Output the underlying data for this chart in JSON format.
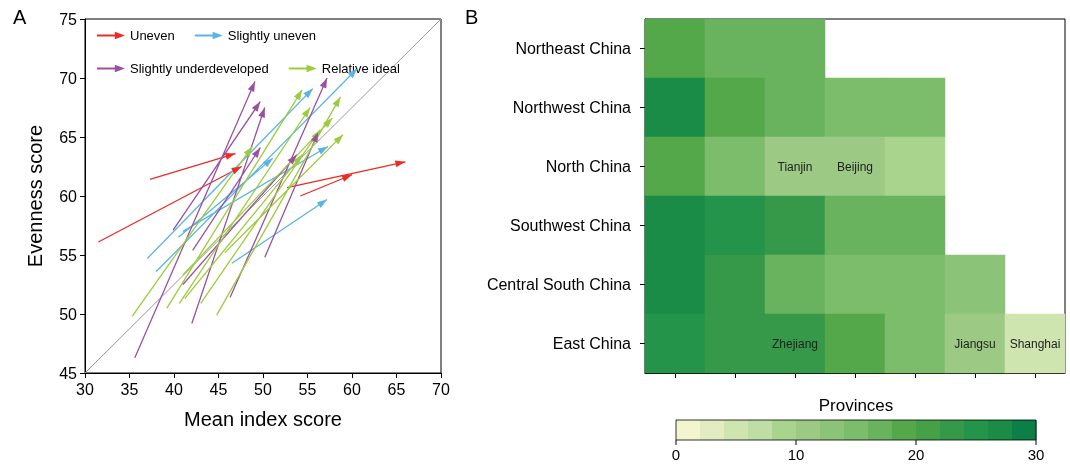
{
  "chart_data": [
    {
      "type": "line",
      "title": "A",
      "xlabel": "Mean index score",
      "ylabel": "Evenness score",
      "xlim": [
        30,
        70
      ],
      "ylim": [
        45,
        75
      ],
      "xticks": [
        30,
        35,
        40,
        45,
        50,
        55,
        60,
        65,
        70
      ],
      "yticks": [
        45,
        50,
        55,
        60,
        65,
        70,
        75
      ],
      "legend": "top",
      "grid": false,
      "series": [
        {
          "name": "Uneven",
          "color": "#ee2a24",
          "x": [
            37.3,
            46.9,
            null,
            31.5,
            47.6,
            null,
            52.7,
            66,
            null,
            54.2,
            60
          ],
          "values": [
            61.4,
            63.6,
            null,
            56.1,
            62.5,
            null,
            60.7,
            62.9,
            null,
            60,
            61.8
          ]
        },
        {
          "name": "Slightly uneven",
          "color": "#5ab4e5",
          "x": [
            37,
            55.6,
            null,
            38,
            60.6,
            null,
            41,
            57.3,
            null,
            40.5,
            51.1,
            null,
            46.5,
            57.2
          ],
          "values": [
            54.7,
            69.1,
            null,
            53.6,
            70.8,
            null,
            57,
            64.2,
            null,
            56.5,
            63.2,
            null,
            54.3,
            59.7
          ]
        },
        {
          "name": "Slightly underdeveloped",
          "color": "#9b51a0",
          "x": [
            35.6,
            49.1,
            null,
            39.9,
            49.7,
            null,
            42,
            50.2,
            null,
            42.1,
            49.7,
            null,
            41,
            53.8,
            null,
            46.3,
            57.2,
            null,
            50.2,
            56.2
          ],
          "values": [
            46.3,
            69.7,
            null,
            57.1,
            68,
            null,
            49.2,
            67.5,
            null,
            55.4,
            64.1,
            null,
            52.5,
            63.5,
            null,
            51.4,
            70,
            null,
            54.8,
            65.4
          ]
        },
        {
          "name": "Relative ideal",
          "color": "#9ccb3b",
          "x": [
            35.3,
            48.8,
            null,
            39.2,
            54.4,
            null,
            40.6,
            55.3,
            null,
            41.2,
            54.4,
            null,
            43,
            56.4,
            null,
            44.8,
            58.7,
            null,
            45.7,
            59,
            null,
            41,
            57.8
          ],
          "values": [
            49.8,
            64.2,
            null,
            50.5,
            69,
            null,
            50.9,
            67.5,
            null,
            51.3,
            63.5,
            null,
            50.9,
            65.6,
            null,
            49.9,
            68.4,
            null,
            55.2,
            65.2,
            null,
            53.3,
            66.6
          ]
        },
        {
          "color": "#999999",
          "x": [
            30,
            70
          ],
          "values": [
            45,
            75
          ]
        }
      ]
    },
    {
      "type": "heatmap",
      "title": "B",
      "clabel": "Provinces",
      "tick_labels": "y",
      "categories": [
        null,
        null,
        null,
        null,
        null,
        null,
        null
      ],
      "y_categories": [
        "Northeast China",
        "Northwest China",
        "North China",
        "Southwest China",
        "Central South China",
        "East China"
      ],
      "cells": [
        [
          19,
          17,
          17,
          null,
          null,
          null,
          null
        ],
        [
          27,
          19,
          17,
          15,
          15,
          null,
          null
        ],
        [
          19,
          15,
          11,
          11,
          9,
          null,
          null
        ],
        [
          27,
          25,
          23,
          17,
          17,
          null,
          null
        ],
        [
          27,
          23,
          17,
          15,
          15,
          13,
          null
        ],
        [
          25,
          23,
          23,
          19,
          15,
          11,
          5
        ]
      ],
      "cell_labels": [
        [
          null,
          null,
          null,
          null,
          null,
          null,
          null
        ],
        [
          null,
          null,
          null,
          null,
          null,
          null,
          null
        ],
        [
          null,
          null,
          "Tianjin",
          "Beijing",
          null,
          null,
          null
        ],
        [
          null,
          null,
          null,
          null,
          null,
          null,
          null
        ],
        [
          null,
          null,
          null,
          null,
          null,
          null,
          null
        ],
        [
          null,
          null,
          "Zhejiang",
          null,
          null,
          "Jiangsu",
          "Shanghai"
        ]
      ],
      "clim": [
        0,
        30
      ],
      "cticks": [
        0,
        10,
        20,
        30
      ]
    }
  ]
}
